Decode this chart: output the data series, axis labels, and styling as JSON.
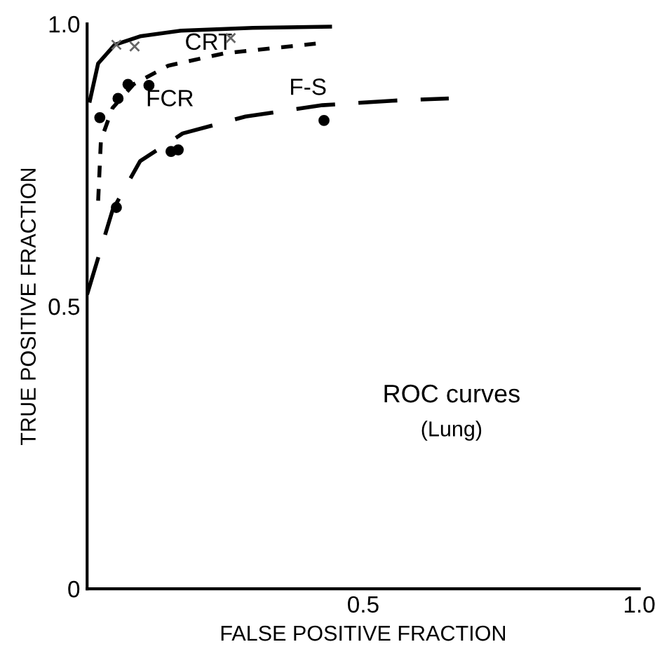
{
  "chart_data": {
    "type": "line",
    "title": "ROC curves",
    "subtitle": "(Lung)",
    "xlabel": "FALSE POSITIVE FRACTION",
    "ylabel": "TRUE POSITIVE FRACTION",
    "series": [
      {
        "name": "CRT",
        "color": "#000000",
        "line_style": "solid",
        "x": [
          0.005,
          0.02,
          0.05,
          0.096,
          0.17,
          0.3,
          0.44
        ],
        "values": [
          0.864,
          0.93,
          0.963,
          0.978,
          0.988,
          0.993,
          0.995
        ]
      },
      {
        "name": "FCR",
        "color": "#000000",
        "line_style": "dotted",
        "x": [
          0.02,
          0.025,
          0.046,
          0.084,
          0.147,
          0.249,
          0.414
        ],
        "values": [
          0.687,
          0.794,
          0.851,
          0.893,
          0.926,
          0.948,
          0.965
        ]
      },
      {
        "name": "F-S",
        "color": "#000000",
        "line_style": "dashed",
        "x": [
          0.0,
          0.046,
          0.096,
          0.173,
          0.287,
          0.426,
          0.553,
          0.655
        ],
        "values": [
          0.521,
          0.67,
          0.757,
          0.806,
          0.836,
          0.856,
          0.864,
          0.868
        ]
      },
      {
        "type": "scatter",
        "color": "#666666",
        "marker": "cross",
        "x": [
          0.053,
          0.086,
          0.26
        ],
        "values": [
          0.963,
          0.96,
          0.975
        ]
      },
      {
        "type": "scatter",
        "color": "#000000",
        "marker": "circle",
        "x": [
          0.023,
          0.056,
          0.074,
          0.112
        ],
        "values": [
          0.834,
          0.868,
          0.893,
          0.891
        ]
      },
      {
        "type": "scatter",
        "color": "#000000",
        "marker": "circle",
        "x": [
          0.053,
          0.152,
          0.165,
          0.429
        ],
        "values": [
          0.675,
          0.774,
          0.777,
          0.829
        ]
      }
    ],
    "xlim": [
      0,
      1.0
    ],
    "ylim": [
      0,
      1.0
    ],
    "xticks": [
      0.5,
      {
        "value": 1.0,
        "label": "1.0"
      }
    ],
    "yticks": [
      0,
      0.5,
      {
        "value": 1.0,
        "label": "1.0"
      }
    ],
    "grid": false,
    "legend": false
  }
}
